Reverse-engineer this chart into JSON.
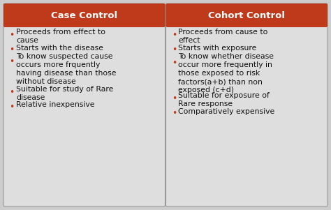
{
  "bg_color": "#cccccc",
  "card_bg": "#dedede",
  "header_color": "#bf3a1a",
  "header_text_color": "#ffffff",
  "bullet_color": "#bf3a1a",
  "text_color": "#111111",
  "left_title": "Case Control",
  "right_title": "Cohort Control",
  "left_bullets": [
    "Proceeds from effect to\ncause",
    "Starts with the disease",
    "To know suspected cause\noccurs more frquently\nhaving disease than those\nwithout disease",
    "Suitable for study of Rare\ndisease",
    "Relative inexpensive"
  ],
  "right_bullets": [
    "Proceeds from cause to\neffect",
    "Starts with exposure",
    "To know whether disease\noccur more frequently in\nthose exposed to risk\nfactors(a+b) than non\nexposed (c+d)",
    "Suitable for exposure of\nRare response",
    "Comparatively expensive"
  ],
  "title_fontsize": 9.5,
  "bullet_fontsize": 7.8,
  "fig_width": 4.74,
  "fig_height": 3.01,
  "dpi": 100
}
